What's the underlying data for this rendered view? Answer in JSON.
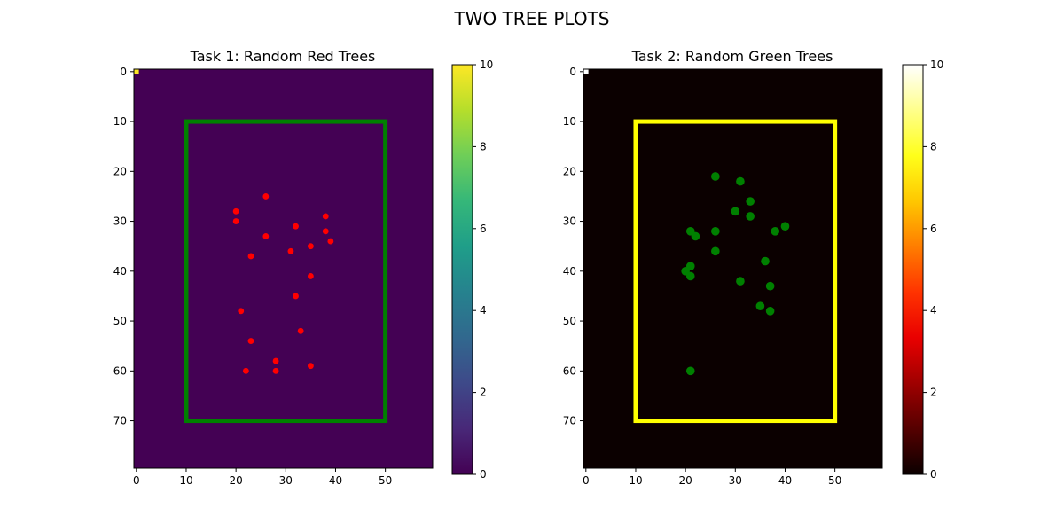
{
  "figure": {
    "suptitle": "TWO TREE PLOTS"
  },
  "chart_data": [
    {
      "type": "heatmap",
      "title": "Task 1: Random Red Trees",
      "colormap": "viridis",
      "grid_shape": [
        80,
        60
      ],
      "background_value": 0,
      "hot_cell": {
        "row": 0,
        "col": 0,
        "value": 10
      },
      "xlim": [
        -0.5,
        59.5
      ],
      "ylim": [
        79.5,
        -0.5
      ],
      "xticks": [
        0,
        10,
        20,
        30,
        40,
        50
      ],
      "yticks": [
        0,
        10,
        20,
        30,
        40,
        50,
        60,
        70
      ],
      "colorbar": {
        "vmin": 0,
        "vmax": 10,
        "ticks": [
          0,
          2,
          4,
          6,
          8,
          10
        ],
        "colors": [
          "#440154",
          "#482878",
          "#3e4989",
          "#31688e",
          "#26828e",
          "#1f9e89",
          "#35b779",
          "#6ece58",
          "#b5de2b",
          "#fde725"
        ]
      },
      "rectangle": {
        "x0": 10,
        "y0": 10,
        "x1": 50,
        "y1": 70,
        "color": "#008000"
      },
      "points": {
        "color": "#ff0000",
        "x": [
          26,
          20,
          20,
          32,
          38,
          26,
          38,
          39,
          35,
          31,
          23,
          35,
          32,
          21,
          33,
          23,
          28,
          35,
          28,
          22
        ],
        "y": [
          25,
          28,
          30,
          31,
          29,
          33,
          32,
          34,
          35,
          36,
          37,
          41,
          45,
          48,
          52,
          54,
          58,
          59,
          60,
          60
        ]
      }
    },
    {
      "type": "heatmap",
      "title": "Task 2: Random Green Trees",
      "colormap": "hot",
      "grid_shape": [
        80,
        60
      ],
      "background_value": 0,
      "hot_cell": {
        "row": 0,
        "col": 0,
        "value": 10
      },
      "xlim": [
        -0.5,
        59.5
      ],
      "ylim": [
        79.5,
        -0.5
      ],
      "xticks": [
        0,
        10,
        20,
        30,
        40,
        50
      ],
      "yticks": [
        0,
        10,
        20,
        30,
        40,
        50,
        60,
        70
      ],
      "colorbar": {
        "vmin": 0,
        "vmax": 10,
        "ticks": [
          0,
          2,
          4,
          6,
          8,
          10
        ],
        "colors": [
          "#0b0000",
          "#550000",
          "#9f0000",
          "#e90000",
          "#ff3300",
          "#ff7d00",
          "#ffc700",
          "#ffff1a",
          "#ffff8b",
          "#ffffff"
        ]
      },
      "rectangle": {
        "x0": 10,
        "y0": 10,
        "x1": 50,
        "y1": 70,
        "color": "#ffff00"
      },
      "points": {
        "color": "#008000",
        "x": [
          26,
          31,
          33,
          30,
          33,
          21,
          22,
          26,
          38,
          40,
          26,
          36,
          21,
          20,
          21,
          31,
          37,
          35,
          37,
          21
        ],
        "y": [
          21,
          22,
          26,
          28,
          29,
          32,
          33,
          32,
          32,
          31,
          36,
          38,
          39,
          40,
          41,
          42,
          43,
          47,
          48,
          60
        ]
      }
    }
  ]
}
